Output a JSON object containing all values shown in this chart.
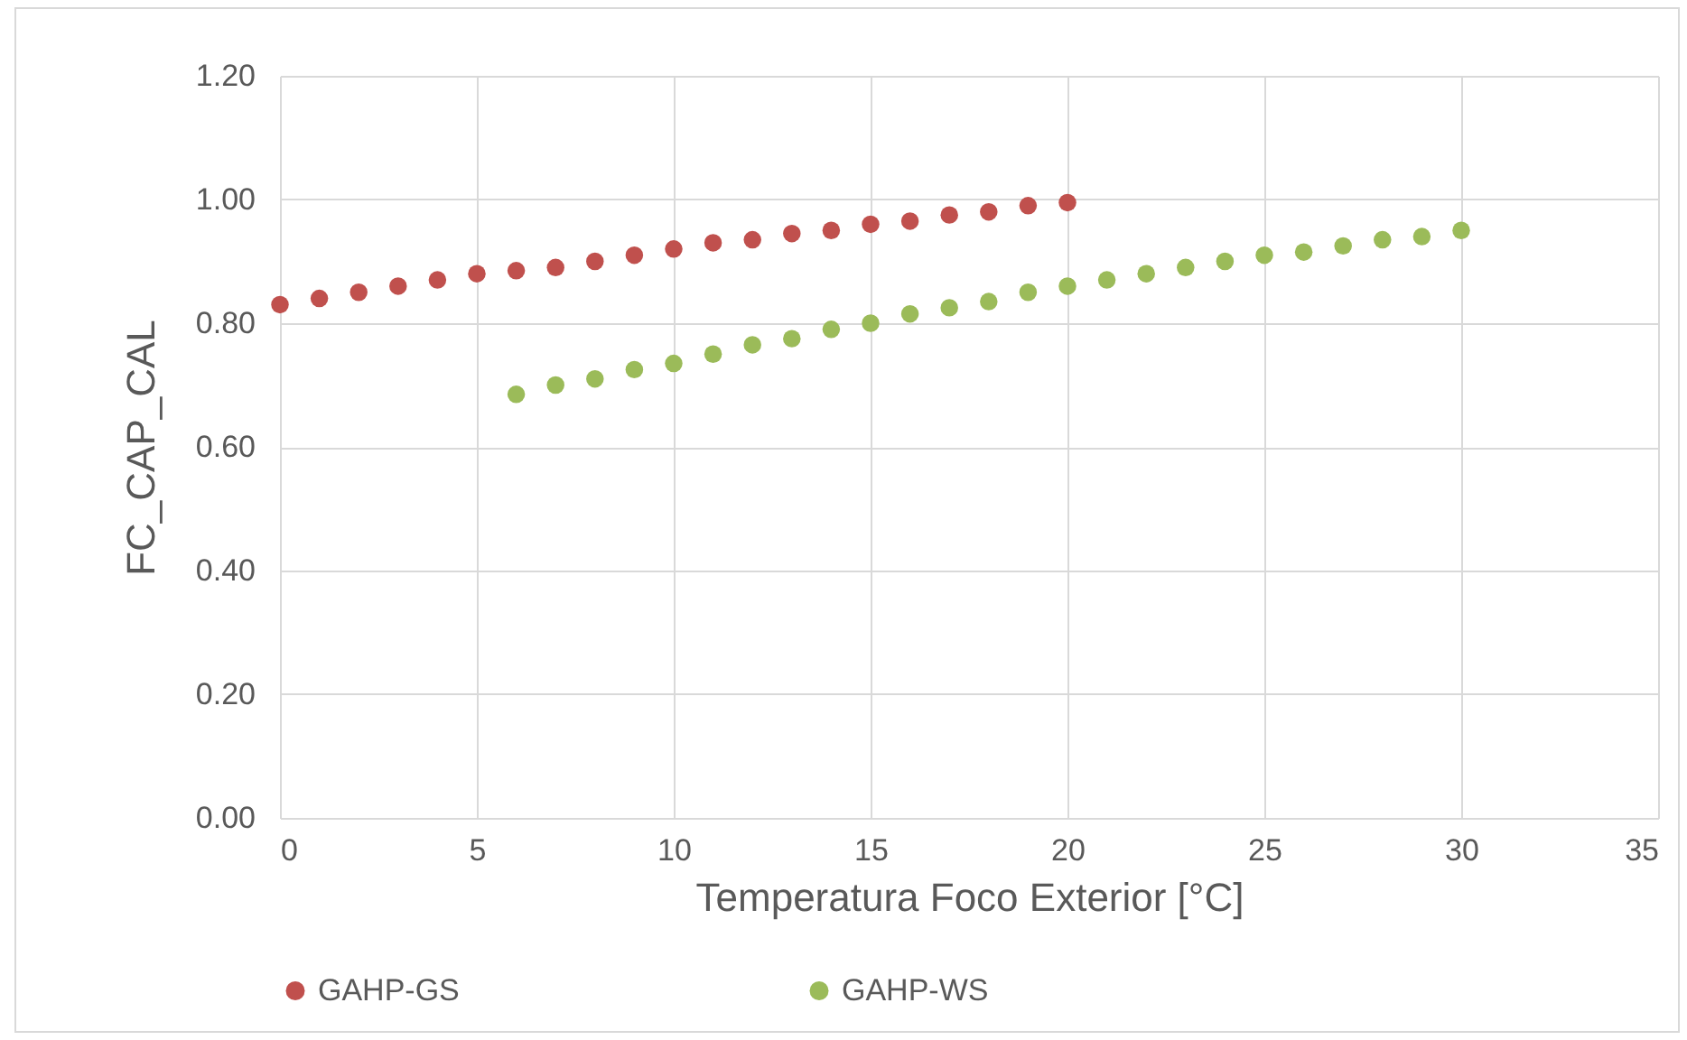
{
  "chart_data": {
    "type": "scatter",
    "xlabel": "Temperatura Foco Exterior [°C]",
    "ylabel": "FC_CAP_CAL",
    "series": [
      {
        "name": "GAHP-GS",
        "color": "#c0504d",
        "x": [
          0,
          1,
          2,
          3,
          4,
          5,
          6,
          7,
          8,
          9,
          10,
          11,
          12,
          13,
          14,
          15,
          16,
          17,
          18,
          19,
          20
        ],
        "values": [
          0.83,
          0.84,
          0.85,
          0.86,
          0.87,
          0.88,
          0.885,
          0.89,
          0.9,
          0.91,
          0.92,
          0.93,
          0.935,
          0.945,
          0.95,
          0.96,
          0.965,
          0.975,
          0.98,
          0.99,
          0.995
        ]
      },
      {
        "name": "GAHP-WS",
        "color": "#9bbb59",
        "x": [
          6,
          7,
          8,
          9,
          10,
          11,
          12,
          13,
          14,
          15,
          16,
          17,
          18,
          19,
          20,
          21,
          22,
          23,
          24,
          25,
          26,
          27,
          28,
          29,
          30
        ],
        "values": [
          0.685,
          0.7,
          0.71,
          0.725,
          0.735,
          0.75,
          0.765,
          0.775,
          0.79,
          0.8,
          0.815,
          0.825,
          0.835,
          0.85,
          0.86,
          0.87,
          0.88,
          0.89,
          0.9,
          0.91,
          0.915,
          0.925,
          0.935,
          0.94,
          0.95
        ]
      }
    ],
    "xlim": [
      0,
      35
    ],
    "xticks": [
      0,
      5,
      10,
      15,
      20,
      25,
      30,
      35
    ],
    "ylim": [
      0,
      1.2
    ],
    "yticks": [
      {
        "value": 0,
        "label": "0.00"
      },
      {
        "value": 0.2,
        "label": "0.20"
      },
      {
        "value": 0.4,
        "label": "0.40"
      },
      {
        "value": 0.6,
        "label": "0.60"
      },
      {
        "value": 0.8,
        "label": "0.80"
      },
      {
        "value": 1,
        "label": "1.00"
      },
      {
        "value": 1.2,
        "label": "1.20"
      }
    ],
    "grid": true,
    "legend": "bottom",
    "marker": "circle"
  }
}
